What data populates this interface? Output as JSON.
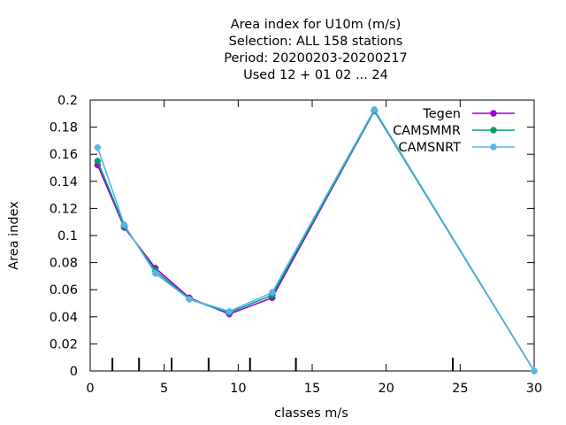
{
  "chart_data": {
    "type": "line",
    "title_lines": [
      "Area index  for U10m (m/s)",
      "Selection: ALL    158 stations",
      "Period: 20200203-20200217",
      "Used  12 + 01 02 ... 24"
    ],
    "xlabel": "classes m/s",
    "ylabel": "Area index",
    "xlim": [
      0,
      30
    ],
    "ylim": [
      0,
      0.2
    ],
    "x_ticks": [
      0,
      5,
      10,
      15,
      20,
      25,
      30
    ],
    "y_ticks": [
      0,
      0.02,
      0.04,
      0.06,
      0.08,
      0.1,
      0.12,
      0.14,
      0.16,
      0.18,
      0.2
    ],
    "x_tick_labels": [
      "0",
      "5",
      "10",
      "15",
      "20",
      "25",
      "30"
    ],
    "y_tick_labels": [
      "0",
      "0.02",
      "0.04",
      "0.06",
      "0.08",
      "0.1",
      "0.12",
      "0.14",
      "0.16",
      "0.18",
      "0.2"
    ],
    "class_boundaries": [
      1.5,
      3.3,
      5.5,
      8.0,
      10.8,
      13.9,
      24.5
    ],
    "grid": false,
    "legend_position": "top-right",
    "series": [
      {
        "name": "Tegen",
        "color": "#9400d3",
        "x": [
          0.5,
          2.3,
          4.4,
          6.7,
          9.4,
          12.3,
          19.2,
          30
        ],
        "y": [
          0.152,
          0.106,
          0.076,
          0.054,
          0.042,
          0.054,
          0.192,
          0.0
        ]
      },
      {
        "name": "CAMSMMR",
        "color": "#009e73",
        "x": [
          0.5,
          2.3,
          4.4,
          6.7,
          9.4,
          12.3,
          19.2,
          30
        ],
        "y": [
          0.155,
          0.107,
          0.074,
          0.053,
          0.043,
          0.056,
          0.192,
          0.0
        ]
      },
      {
        "name": "CAMSNRT",
        "color": "#56b4e9",
        "x": [
          0.5,
          2.3,
          4.4,
          6.7,
          9.4,
          12.3,
          19.2,
          30
        ],
        "y": [
          0.165,
          0.108,
          0.072,
          0.053,
          0.044,
          0.058,
          0.193,
          0.0
        ]
      }
    ]
  }
}
